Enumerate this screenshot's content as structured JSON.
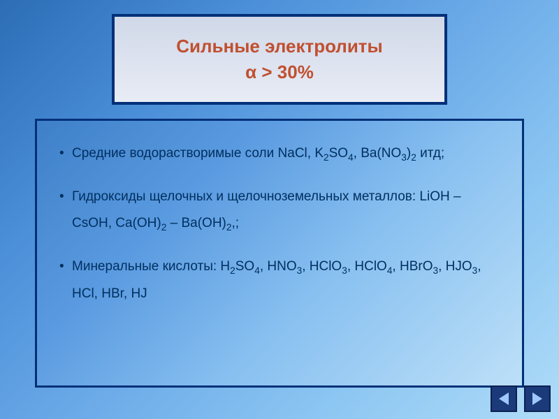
{
  "title": {
    "line1": "Сильные электролиты",
    "line2": "α > 30%",
    "text_color": "#c05030",
    "box_border_color": "#003078",
    "box_bg_start": "#d0d8e8",
    "box_bg_end": "#e8ecf5",
    "font_size": 26
  },
  "content": {
    "box_border_color": "#003078",
    "text_color": "#003060",
    "font_size": 19,
    "items": [
      {
        "prefix": "Средние водорастворимые соли NaCl, K",
        "sub1": "2",
        "mid1": "SO",
        "sub2": "4",
        "mid2": ", Ba(NO",
        "sub3": "3",
        "mid3": ")",
        "sub4": "2",
        "suffix": " итд;"
      },
      {
        "prefix": "Гидроксиды щелочных и щелочноземельных металлов: LiOH – CsOH, Ca(OH)",
        "sub1": "2",
        "mid1": " – Ba(OH)",
        "sub2": "2",
        "suffix": ",;"
      },
      {
        "prefix": "Минеральные кислоты: H",
        "sub1": "2",
        "mid1": "SO",
        "sub2": "4",
        "mid2": ", HNO",
        "sub3": "3",
        "mid3": ", HClO",
        "sub4": "3",
        "mid4": ", HClO",
        "sub5": "4",
        "mid5": ", HBrO",
        "sub6": "3",
        "mid6": ", HJO",
        "sub7": "3",
        "suffix": ", HCl, HBr, HJ"
      }
    ]
  },
  "nav": {
    "button_bg": "#1a3a7a",
    "button_border": "#0d2050",
    "arrow_color": "#a0c8ff"
  },
  "background": {
    "gradient_start": "#2c6db5",
    "gradient_end": "#b0dcf8"
  }
}
